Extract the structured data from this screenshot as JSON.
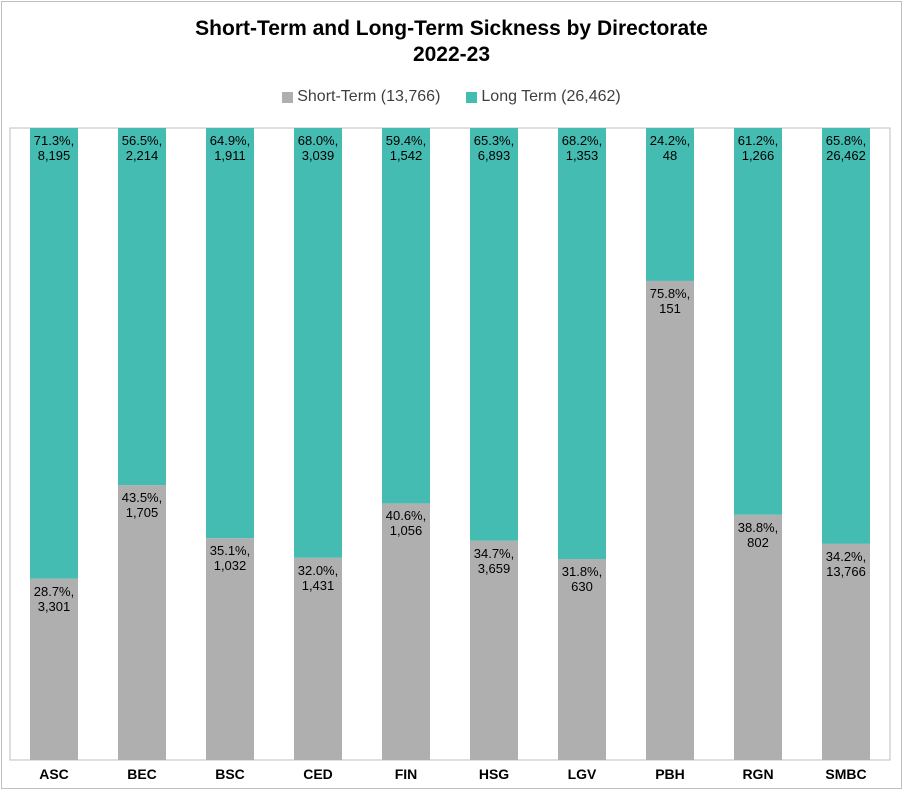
{
  "chart_data": {
    "type": "stacked_bar",
    "title": "Short-Term and Long-Term Sickness by Directorate\n2022-23",
    "categories": [
      "ASC",
      "BEC",
      "BSC",
      "CED",
      "FIN",
      "HSG",
      "LGV",
      "PBH",
      "RGN",
      "SMBC"
    ],
    "ylim": [
      0,
      100
    ],
    "legend": "top",
    "series": [
      {
        "name": "Short-Term (13,766)",
        "color": "#afafaf",
        "values": [
          28.7,
          43.5,
          35.1,
          32.0,
          40.6,
          34.7,
          31.8,
          75.8,
          38.8,
          34.2
        ],
        "value_labels": [
          "28.7%,\n3,301",
          "43.5%,\n1,705",
          "35.1%,\n1,032",
          "32.0%,\n1,431",
          "40.6%,\n1,056",
          "34.7%,\n3,659",
          "31.8%,\n630",
          "75.8%,\n151",
          "38.8%,\n802",
          "34.2%,\n13,766"
        ]
      },
      {
        "name": "Long Term (26,462)",
        "color": "#45bcb1",
        "values": [
          71.3,
          56.5,
          64.9,
          68.0,
          59.4,
          65.3,
          68.2,
          24.2,
          61.2,
          65.8
        ],
        "value_labels": [
          "71.3%,\n8,195",
          "56.5%,\n2,214",
          "64.9%,\n1,911",
          "68.0%,\n3,039",
          "59.4%,\n1,542",
          "65.3%,\n6,893",
          "68.2%,\n1,353",
          "24.2%,\n48",
          "61.2%,\n1,266",
          "65.8%,\n26,462"
        ]
      }
    ]
  }
}
